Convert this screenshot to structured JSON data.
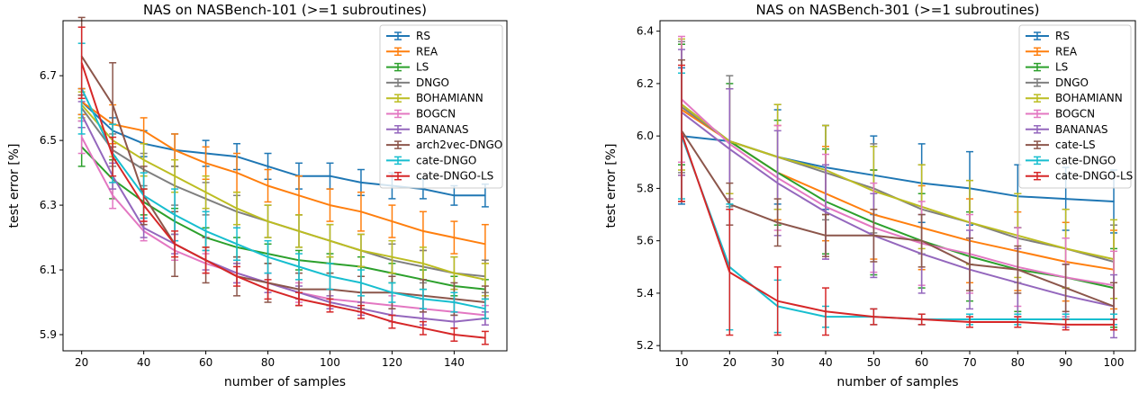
{
  "chart_data": [
    {
      "type": "line",
      "title": "NAS on NASBench-101 (>=1 subroutines)",
      "xlabel": "number of samples",
      "ylabel": "test error [%]",
      "xlim": [
        14,
        157
      ],
      "ylim": [
        5.85,
        6.87
      ],
      "xticks": [
        20,
        40,
        60,
        80,
        100,
        120,
        140
      ],
      "yticks": [
        5.9,
        6.1,
        6.3,
        6.5,
        6.7
      ],
      "ytick_labels": [
        "5.9",
        "6.1",
        "6.3",
        "6.5",
        "6.7"
      ],
      "legend": "top-right",
      "x": [
        20,
        30,
        40,
        50,
        60,
        70,
        80,
        90,
        100,
        110,
        120,
        130,
        140,
        150
      ],
      "series": [
        {
          "name": "RS",
          "color": "#1f77b4",
          "values": [
            6.62,
            6.53,
            6.49,
            6.47,
            6.46,
            6.45,
            6.42,
            6.39,
            6.39,
            6.37,
            6.36,
            6.35,
            6.33,
            6.33
          ],
          "err": [
            0.04,
            0.04,
            0.04,
            0.05,
            0.04,
            0.04,
            0.04,
            0.04,
            0.04,
            0.04,
            0.04,
            0.03,
            0.03,
            0.035
          ]
        },
        {
          "name": "REA",
          "color": "#ff7f0e",
          "values": [
            6.62,
            6.55,
            6.53,
            6.47,
            6.43,
            6.4,
            6.36,
            6.33,
            6.3,
            6.28,
            6.25,
            6.22,
            6.2,
            6.18
          ],
          "err": [
            0.04,
            0.06,
            0.04,
            0.05,
            0.05,
            0.06,
            0.05,
            0.06,
            0.05,
            0.06,
            0.05,
            0.06,
            0.05,
            0.06
          ]
        },
        {
          "name": "LS",
          "color": "#2ca02c",
          "values": [
            6.48,
            6.38,
            6.31,
            6.25,
            6.2,
            6.17,
            6.15,
            6.13,
            6.12,
            6.11,
            6.09,
            6.07,
            6.05,
            6.04
          ],
          "err": [
            0.06,
            0.06,
            0.04,
            0.04,
            0.03,
            0.03,
            0.03,
            0.03,
            0.03,
            0.03,
            0.03,
            0.03,
            0.03,
            0.03
          ]
        },
        {
          "name": "DNGO",
          "color": "#7f7f7f",
          "values": [
            6.6,
            6.47,
            6.41,
            6.36,
            6.32,
            6.28,
            6.25,
            6.22,
            6.19,
            6.16,
            6.13,
            6.11,
            6.09,
            6.08
          ],
          "err": [
            0.04,
            0.05,
            0.05,
            0.06,
            0.05,
            0.05,
            0.05,
            0.05,
            0.05,
            0.05,
            0.05,
            0.05,
            0.05,
            0.05
          ]
        },
        {
          "name": "BOHAMIANN",
          "color": "#bcbd22",
          "values": [
            6.61,
            6.5,
            6.44,
            6.39,
            6.34,
            6.29,
            6.25,
            6.22,
            6.19,
            6.16,
            6.14,
            6.12,
            6.09,
            6.07
          ],
          "err": [
            0.04,
            0.05,
            0.05,
            0.05,
            0.05,
            0.05,
            0.05,
            0.05,
            0.05,
            0.05,
            0.05,
            0.05,
            0.05,
            0.05
          ]
        },
        {
          "name": "BOGCN",
          "color": "#e377c2",
          "values": [
            6.51,
            6.33,
            6.22,
            6.16,
            6.12,
            6.09,
            6.06,
            6.03,
            6.01,
            6.0,
            5.99,
            5.98,
            5.97,
            5.96
          ],
          "err": [
            0.05,
            0.04,
            0.03,
            0.03,
            0.03,
            0.03,
            0.03,
            0.03,
            0.03,
            0.03,
            0.03,
            0.03,
            0.03,
            0.03
          ]
        },
        {
          "name": "BANANAS",
          "color": "#9467bd",
          "values": [
            6.58,
            6.39,
            6.23,
            6.18,
            6.13,
            6.09,
            6.06,
            6.03,
            6.0,
            5.98,
            5.96,
            5.95,
            5.94,
            5.95
          ],
          "err": [
            0.04,
            0.04,
            0.03,
            0.03,
            0.03,
            0.03,
            0.03,
            0.02,
            0.02,
            0.02,
            0.02,
            0.02,
            0.02,
            0.02
          ]
        },
        {
          "name": "arch2vec-DNGO",
          "color": "#8c564b",
          "values": [
            6.76,
            6.61,
            6.33,
            6.18,
            6.13,
            6.08,
            6.06,
            6.04,
            6.04,
            6.03,
            6.03,
            6.02,
            6.01,
            6.0
          ],
          "err": [
            0.12,
            0.13,
            0.09,
            0.1,
            0.07,
            0.06,
            0.06,
            0.05,
            0.05,
            0.05,
            0.05,
            0.05,
            0.05,
            0.05
          ]
        },
        {
          "name": "cate-DNGO",
          "color": "#17becf",
          "values": [
            6.66,
            6.46,
            6.33,
            6.27,
            6.22,
            6.18,
            6.14,
            6.11,
            6.08,
            6.06,
            6.03,
            6.01,
            6.0,
            5.98
          ],
          "err": [
            0.14,
            0.09,
            0.07,
            0.08,
            0.06,
            0.05,
            0.05,
            0.04,
            0.04,
            0.04,
            0.03,
            0.03,
            0.03,
            0.03
          ]
        },
        {
          "name": "cate-DNGO-LS",
          "color": "#d62728",
          "values": [
            6.74,
            6.45,
            6.3,
            6.18,
            6.13,
            6.08,
            6.04,
            6.01,
            5.99,
            5.97,
            5.94,
            5.92,
            5.9,
            5.89
          ],
          "err": [
            0.11,
            0.06,
            0.05,
            0.04,
            0.04,
            0.03,
            0.03,
            0.02,
            0.02,
            0.02,
            0.02,
            0.02,
            0.02,
            0.02
          ]
        }
      ]
    },
    {
      "type": "line",
      "title": "NAS on NASBench-301 (>=1 subroutines)",
      "xlabel": "number of samples",
      "ylabel": "test error [%]",
      "xlim": [
        5.5,
        104.5
      ],
      "ylim": [
        5.18,
        6.44
      ],
      "xticks": [
        10,
        20,
        30,
        40,
        50,
        60,
        70,
        80,
        90,
        100
      ],
      "yticks": [
        5.2,
        5.4,
        5.6,
        5.8,
        6.0,
        6.2,
        6.4
      ],
      "ytick_labels": [
        "5.2",
        "5.4",
        "5.6",
        "5.8",
        "6.0",
        "6.2",
        "6.4"
      ],
      "legend": "top-right",
      "x": [
        10,
        20,
        30,
        40,
        50,
        60,
        70,
        80,
        90,
        100
      ],
      "series": [
        {
          "name": "RS",
          "color": "#1f77b4",
          "values": [
            6.0,
            5.98,
            5.92,
            5.88,
            5.85,
            5.82,
            5.8,
            5.77,
            5.76,
            5.75
          ],
          "err": [
            0.26,
            0.2,
            0.18,
            0.16,
            0.15,
            0.15,
            0.14,
            0.12,
            0.12,
            0.12
          ]
        },
        {
          "name": "REA",
          "color": "#ff7f0e",
          "values": [
            6.1,
            5.98,
            5.86,
            5.78,
            5.7,
            5.65,
            5.6,
            5.56,
            5.52,
            5.49
          ],
          "err": [
            0.25,
            0.2,
            0.18,
            0.18,
            0.17,
            0.16,
            0.16,
            0.15,
            0.15,
            0.15
          ]
        },
        {
          "name": "LS",
          "color": "#2ca02c",
          "values": [
            6.12,
            5.98,
            5.86,
            5.75,
            5.67,
            5.6,
            5.54,
            5.49,
            5.46,
            5.42
          ],
          "err": [
            0.23,
            0.22,
            0.2,
            0.2,
            0.2,
            0.18,
            0.17,
            0.16,
            0.15,
            0.15
          ]
        },
        {
          "name": "DNGO",
          "color": "#7f7f7f",
          "values": [
            6.11,
            5.98,
            5.92,
            5.86,
            5.8,
            5.72,
            5.67,
            5.61,
            5.57,
            5.52
          ],
          "err": [
            0.25,
            0.25,
            0.2,
            0.18,
            0.17,
            0.17,
            0.16,
            0.17,
            0.15,
            0.14
          ]
        },
        {
          "name": "BOHAMIANN",
          "color": "#bcbd22",
          "values": [
            6.12,
            5.98,
            5.92,
            5.87,
            5.79,
            5.73,
            5.67,
            5.62,
            5.57,
            5.53
          ],
          "err": [
            0.25,
            0.2,
            0.2,
            0.17,
            0.17,
            0.16,
            0.16,
            0.16,
            0.15,
            0.15
          ]
        },
        {
          "name": "BOGCN",
          "color": "#e377c2",
          "values": [
            6.14,
            5.97,
            5.84,
            5.73,
            5.65,
            5.59,
            5.55,
            5.5,
            5.46,
            5.43
          ],
          "err": [
            0.24,
            0.21,
            0.2,
            0.2,
            0.17,
            0.16,
            0.15,
            0.15,
            0.15,
            0.13
          ]
        },
        {
          "name": "BANANAS",
          "color": "#9467bd",
          "values": [
            6.09,
            5.95,
            5.82,
            5.71,
            5.62,
            5.55,
            5.49,
            5.44,
            5.39,
            5.35
          ],
          "err": [
            0.24,
            0.23,
            0.2,
            0.18,
            0.16,
            0.15,
            0.15,
            0.13,
            0.12,
            0.12
          ]
        },
        {
          "name": "cate-LS",
          "color": "#8c564b",
          "values": [
            6.02,
            5.74,
            5.67,
            5.62,
            5.62,
            5.6,
            5.51,
            5.49,
            5.42,
            5.35
          ],
          "err": [
            0.27,
            0.08,
            0.09,
            0.08,
            0.1,
            0.1,
            0.1,
            0.09,
            0.09,
            0.09
          ]
        },
        {
          "name": "cate-DNGO",
          "color": "#17becf",
          "values": [
            6.0,
            5.5,
            5.35,
            5.31,
            5.31,
            5.3,
            5.3,
            5.3,
            5.3,
            5.3
          ],
          "err": [
            0.24,
            0.24,
            0.1,
            0.04,
            0.03,
            0.02,
            0.02,
            0.02,
            0.02,
            0.02
          ]
        },
        {
          "name": "cate-DNGO-LS",
          "color": "#d62728",
          "values": [
            6.01,
            5.48,
            5.37,
            5.33,
            5.31,
            5.3,
            5.29,
            5.29,
            5.28,
            5.28
          ],
          "err": [
            0.26,
            0.24,
            0.13,
            0.09,
            0.03,
            0.02,
            0.02,
            0.02,
            0.02,
            0.02
          ]
        }
      ]
    }
  ]
}
